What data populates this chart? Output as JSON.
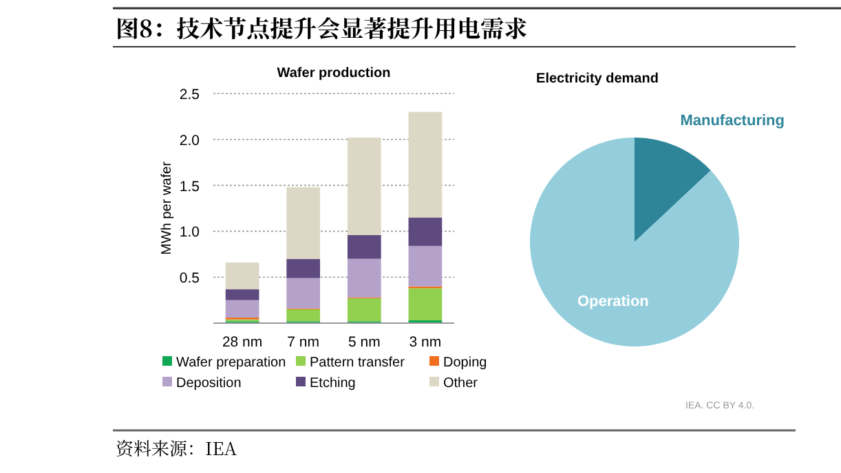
{
  "chart_data": [
    {
      "type": "bar",
      "title": "Wafer production",
      "ylabel": "MWh per wafer",
      "categories": [
        "28 nm",
        "7 nm",
        "5 nm",
        "3 nm"
      ],
      "stacked": true,
      "ylim": [
        0,
        2.5
      ],
      "yticks": [
        0.5,
        {
          "value": 1,
          "label": "1.0"
        },
        1.5,
        {
          "value": 2,
          "label": "2.0"
        },
        2.5
      ],
      "grid": "y",
      "legend": "bottom",
      "annotations": [
        "图8：技术节点提升会显著提升用电需求",
        "资料来源：IEA"
      ],
      "series": [
        {
          "name": "Wafer preparation",
          "color": "#10a855",
          "values": [
            0.02,
            0.02,
            0.02,
            0.03
          ]
        },
        {
          "name": "Pattern transfer",
          "color": "#92d050",
          "values": [
            0.02,
            0.13,
            0.25,
            0.35
          ]
        },
        {
          "name": "Doping",
          "color": "#f07020",
          "values": [
            0.02,
            0.01,
            0.01,
            0.02
          ]
        },
        {
          "name": "Deposition",
          "color": "#b4a2ca",
          "values": [
            0.19,
            0.33,
            0.42,
            0.44
          ]
        },
        {
          "name": "Etching",
          "color": "#5e4a7e",
          "values": [
            0.12,
            0.21,
            0.26,
            0.31
          ]
        },
        {
          "name": "Other",
          "color": "#ddd8c5",
          "values": [
            0.29,
            0.78,
            1.06,
            1.15
          ]
        }
      ]
    },
    {
      "type": "pie",
      "title": "Electricity demand",
      "categories": [
        "Manufacturing",
        "Operation"
      ],
      "values": [
        13,
        87
      ],
      "colors": [
        "#2e8599",
        "#94cedd"
      ],
      "annotations": [
        "IEA. CC BY 4.0."
      ]
    }
  ]
}
